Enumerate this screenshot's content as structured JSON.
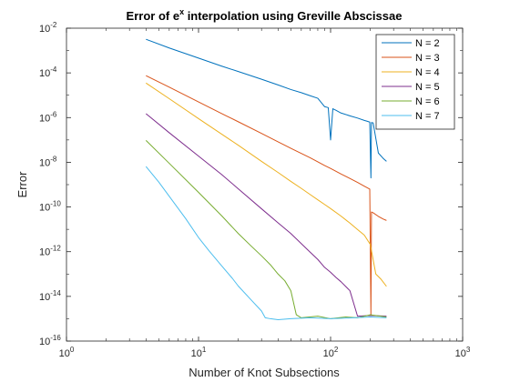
{
  "chart_data": {
    "type": "line",
    "title": {
      "prefix": "Error of e",
      "superscript": "x",
      "suffix": " interpolation using Greville Abscissae"
    },
    "xlabel": "Number of Knot Subsections",
    "ylabel": "Error",
    "x_scale": "log",
    "y_scale": "log",
    "xlim": [
      1,
      1000
    ],
    "ylim": [
      1e-16,
      0.01
    ],
    "grid": false,
    "legend_position": "top-right",
    "x_ticks": [
      {
        "value": 1,
        "base": "10",
        "exp": "0"
      },
      {
        "value": 10,
        "base": "10",
        "exp": "1"
      },
      {
        "value": 100,
        "base": "10",
        "exp": "2"
      },
      {
        "value": 1000,
        "base": "10",
        "exp": "3"
      }
    ],
    "y_ticks": [
      {
        "value": 1e-16,
        "base": "10",
        "exp": "-16"
      },
      {
        "value": 1e-14,
        "base": "10",
        "exp": "-14"
      },
      {
        "value": 1e-12,
        "base": "10",
        "exp": "-12"
      },
      {
        "value": 1e-10,
        "base": "10",
        "exp": "-10"
      },
      {
        "value": 1e-08,
        "base": "10",
        "exp": "-8"
      },
      {
        "value": 1e-06,
        "base": "10",
        "exp": "-6"
      },
      {
        "value": 0.0001,
        "base": "10",
        "exp": "-4"
      },
      {
        "value": 0.01,
        "base": "10",
        "exp": "-2"
      }
    ],
    "series": [
      {
        "name": "N = 2",
        "color": "#0072BD",
        "x": [
          4,
          6,
          10,
          15,
          20,
          30,
          40,
          50,
          60,
          70,
          80,
          90,
          96,
          100,
          104,
          110,
          120,
          140,
          160,
          180,
          190,
          198,
          202,
          204,
          210,
          230,
          250,
          265
        ],
        "y": [
          0.0032,
          0.0013,
          0.00046,
          0.0002,
          0.000115,
          5.2e-05,
          2.9e-05,
          1.8e-05,
          1.3e-05,
          9.5e-06,
          7.3e-06,
          3.1e-06,
          2.8e-06,
          1e-07,
          2.5e-06,
          2.1e-06,
          1.6e-06,
          1.2e-06,
          9.5e-07,
          7.5e-07,
          6.8e-07,
          6.3e-07,
          2e-09,
          6e-07,
          5.8e-07,
          2.6e-08,
          1.5e-08,
          1.1e-08
        ]
      },
      {
        "name": "N = 3",
        "color": "#D95319",
        "x": [
          4,
          6,
          10,
          15,
          20,
          30,
          40,
          50,
          60,
          70,
          80,
          90,
          100,
          120,
          140,
          160,
          180,
          198,
          202,
          204,
          210,
          230,
          250,
          265
        ],
        "y": [
          7.5e-05,
          2.3e-05,
          5e-06,
          1.5e-06,
          6.5e-07,
          1.95e-07,
          8.2e-08,
          4.2e-08,
          2.5e-08,
          1.6e-08,
          1.05e-08,
          7.2e-09,
          5.3e-09,
          3e-09,
          1.9e-09,
          1.25e-09,
          8.5e-10,
          6.3e-10,
          1.5e-15,
          6e-11,
          5.5e-11,
          3.8e-11,
          2.9e-11,
          2.5e-11
        ]
      },
      {
        "name": "N = 4",
        "color": "#EDB120",
        "x": [
          4,
          6,
          10,
          15,
          20,
          30,
          40,
          50,
          60,
          70,
          80,
          90,
          100,
          120,
          140,
          160,
          180,
          200,
          220,
          240,
          265
        ],
        "y": [
          3.5e-05,
          7e-06,
          9e-07,
          1.8e-07,
          5.8e-08,
          1.1e-08,
          3.5e-09,
          1.4e-09,
          6.8e-10,
          3.6e-10,
          2.1e-10,
          1.3e-10,
          8.5e-11,
          3.9e-11,
          1.9e-11,
          9.8e-12,
          5.5e-12,
          2.1e-12,
          1e-13,
          6e-14,
          2.8e-14
        ]
      },
      {
        "name": "N = 5",
        "color": "#7E2F8E",
        "x": [
          4,
          6,
          10,
          15,
          20,
          30,
          40,
          50,
          60,
          70,
          80,
          90,
          100,
          110,
          120,
          140,
          160,
          200,
          265
        ],
        "y": [
          1.5e-06,
          2.1e-07,
          1.9e-08,
          2.8e-09,
          6.5e-10,
          8.3e-11,
          1.95e-11,
          6.5e-12,
          2.3e-12,
          9.5e-13,
          4.5e-13,
          2e-13,
          1.2e-13,
          7e-14,
          4.5e-14,
          1.8e-14,
          1.3e-15,
          1.4e-15,
          1.3e-15
        ]
      },
      {
        "name": "N = 6",
        "color": "#77AC30",
        "x": [
          4,
          6,
          10,
          15,
          20,
          25,
          30,
          35,
          40,
          45,
          50,
          55,
          60,
          80,
          100,
          130,
          160,
          200,
          265
        ],
        "y": [
          9.5e-08,
          9e-09,
          4.5e-10,
          4e-11,
          6.5e-12,
          1.8e-12,
          6.5e-13,
          2.6e-13,
          1e-13,
          5e-14,
          1.8e-14,
          1.5e-15,
          1.1e-15,
          1.3e-15,
          1e-15,
          1.2e-15,
          1.1e-15,
          1.5e-15,
          1.2e-15
        ]
      },
      {
        "name": "N = 7",
        "color": "#4DBEEE",
        "x": [
          4,
          5,
          6,
          8,
          10,
          12,
          15,
          18,
          20,
          25,
          30,
          32,
          35,
          40,
          50,
          70,
          100,
          150,
          200,
          265
        ],
        "y": [
          6.5e-09,
          1.3e-09,
          3e-10,
          3e-11,
          4.3e-12,
          1.1e-12,
          2.3e-13,
          6.5e-14,
          2.9e-14,
          7e-15,
          2.2e-15,
          1.1e-15,
          1e-15,
          9e-16,
          1e-15,
          1.1e-15,
          1e-15,
          1.1e-15,
          1.2e-15,
          1.1e-15
        ]
      }
    ]
  }
}
